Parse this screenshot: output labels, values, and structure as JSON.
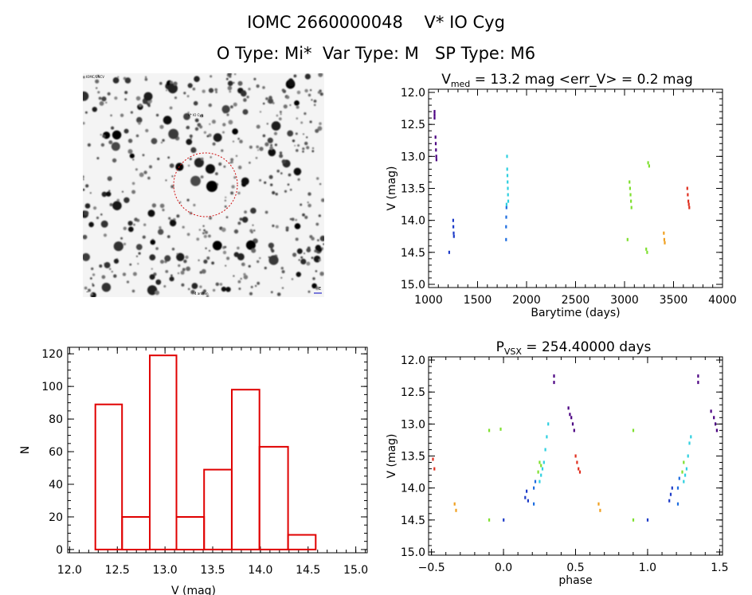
{
  "header": {
    "line1": "IOMC 2660000048    V* IO Cyg",
    "line2": "O Type: Mi*  Var Type: M   SP Type: M6"
  },
  "image_panel": {
    "label_top_left": "IOMC/SNCV",
    "label_target": "V* IO Cyg",
    "label_bottom_left": "~",
    "label_bottom_center": "4 arcmin",
    "label_bottom_right": "E"
  },
  "chart_data": [
    {
      "type": "scatter",
      "title": "V_med = 13.2 mag <err_V> = 0.2 mag",
      "xlabel": "Barytime (days)",
      "ylabel": "V (mag)",
      "xlim": [
        1000,
        4000
      ],
      "ylim": [
        15.05,
        11.95
      ],
      "y_inverted": true,
      "xticks": [
        "1000",
        "1500",
        "2000",
        "2500",
        "3000",
        "3500",
        "4000"
      ],
      "yticks": [
        "12.0",
        "12.5",
        "13.0",
        "13.5",
        "14.0",
        "14.5",
        "15.0"
      ],
      "series": [
        {
          "color": "#4b0082",
          "points": [
            [
              1060,
              12.3
            ],
            [
              1060,
              12.35
            ],
            [
              1060,
              12.4
            ],
            [
              1070,
              12.7
            ],
            [
              1072,
              12.8
            ],
            [
              1075,
              12.9
            ],
            [
              1078,
              13.0
            ],
            [
              1080,
              13.05
            ]
          ]
        },
        {
          "color": "#1e3cc8",
          "points": [
            [
              1210,
              14.5
            ],
            [
              1250,
              14.0
            ],
            [
              1252,
              14.1
            ],
            [
              1255,
              14.2
            ],
            [
              1258,
              14.25
            ]
          ]
        },
        {
          "color": "#1e6ee0",
          "points": [
            [
              1790,
              14.3
            ],
            [
              1790,
              14.1
            ],
            [
              1792,
              13.95
            ],
            [
              1794,
              13.8
            ]
          ]
        },
        {
          "color": "#2fd0e0",
          "points": [
            [
              1800,
              13.0
            ],
            [
              1802,
              13.2
            ],
            [
              1804,
              13.3
            ],
            [
              1806,
              13.4
            ],
            [
              1808,
              13.5
            ],
            [
              1810,
              13.6
            ],
            [
              1812,
              13.7
            ],
            [
              1795,
              13.75
            ]
          ]
        },
        {
          "color": "#7fe030",
          "points": [
            [
              3050,
              13.4
            ],
            [
              3055,
              13.5
            ],
            [
              3060,
              13.6
            ],
            [
              3065,
              13.7
            ],
            [
              3070,
              13.8
            ],
            [
              3220,
              14.45
            ],
            [
              3230,
              14.5
            ],
            [
              3240,
              13.1
            ],
            [
              3250,
              13.15
            ],
            [
              3030,
              14.3
            ]
          ]
        },
        {
          "color": "#f0a020",
          "points": [
            [
              3400,
              14.2
            ],
            [
              3405,
              14.3
            ],
            [
              3410,
              14.35
            ]
          ]
        },
        {
          "color": "#e03020",
          "points": [
            [
              3640,
              13.5
            ],
            [
              3645,
              13.6
            ],
            [
              3650,
              13.7
            ],
            [
              3655,
              13.75
            ],
            [
              3660,
              13.8
            ]
          ]
        }
      ]
    },
    {
      "type": "bar",
      "title": "",
      "xlabel": "V (mag)",
      "ylabel": "N",
      "xlim": [
        11.98,
        15.12
      ],
      "ylim": [
        -2,
        124
      ],
      "xticks": [
        "12.0",
        "12.5",
        "13.0",
        "13.5",
        "14.0",
        "14.5",
        "15.0"
      ],
      "yticks": [
        "0",
        "20",
        "40",
        "60",
        "80",
        "100",
        "120"
      ],
      "bar_color": "#e00000",
      "bins": [
        {
          "from": 12.27,
          "to": 12.55,
          "value": 89
        },
        {
          "from": 12.55,
          "to": 12.84,
          "value": 20
        },
        {
          "from": 12.84,
          "to": 13.12,
          "value": 119
        },
        {
          "from": 13.12,
          "to": 13.41,
          "value": 20
        },
        {
          "from": 13.41,
          "to": 13.7,
          "value": 49
        },
        {
          "from": 13.7,
          "to": 13.99,
          "value": 98
        },
        {
          "from": 13.99,
          "to": 14.29,
          "value": 63
        },
        {
          "from": 14.29,
          "to": 14.58,
          "value": 9
        }
      ]
    },
    {
      "type": "scatter",
      "title": "P_VSX = 254.40000 days",
      "xlabel": "phase",
      "ylabel": "V (mag)",
      "xlim": [
        -0.52,
        1.52
      ],
      "ylim": [
        15.05,
        11.95
      ],
      "y_inverted": true,
      "xticks": [
        "−0.5",
        "0.0",
        "0.5",
        "1.0",
        "1.5"
      ],
      "yticks": [
        "12.0",
        "12.5",
        "13.0",
        "13.5",
        "14.0",
        "14.5",
        "15.0"
      ],
      "series": [
        {
          "color": "#4b0082",
          "points": [
            [
              0.35,
              12.25
            ],
            [
              0.35,
              12.35
            ],
            [
              0.45,
              12.75
            ],
            [
              0.46,
              12.85
            ],
            [
              0.47,
              12.9
            ],
            [
              0.48,
              13.0
            ],
            [
              0.49,
              13.1
            ],
            [
              1.35,
              12.25
            ],
            [
              1.35,
              12.35
            ],
            [
              1.44,
              12.8
            ],
            [
              1.46,
              12.9
            ],
            [
              1.47,
              13.0
            ],
            [
              1.48,
              13.1
            ]
          ]
        },
        {
          "color": "#1e3cc8",
          "points": [
            [
              0.0,
              14.5
            ],
            [
              0.15,
              14.15
            ],
            [
              0.16,
              14.05
            ],
            [
              0.17,
              14.2
            ],
            [
              1.0,
              14.5
            ],
            [
              1.15,
              14.2
            ],
            [
              1.16,
              14.1
            ],
            [
              1.17,
              14.0
            ]
          ]
        },
        {
          "color": "#1e6ee0",
          "points": [
            [
              0.21,
              14.25
            ],
            [
              0.21,
              14.0
            ],
            [
              0.22,
              13.9
            ],
            [
              1.21,
              14.25
            ],
            [
              1.21,
              14.0
            ],
            [
              1.22,
              13.85
            ]
          ]
        },
        {
          "color": "#2fd0e0",
          "points": [
            [
              0.25,
              13.9
            ],
            [
              0.26,
              13.8
            ],
            [
              0.27,
              13.7
            ],
            [
              0.28,
              13.6
            ],
            [
              0.29,
              13.4
            ],
            [
              0.3,
              13.2
            ],
            [
              0.31,
              13.0
            ],
            [
              1.25,
              13.9
            ],
            [
              1.26,
              13.8
            ],
            [
              1.27,
              13.7
            ],
            [
              1.28,
              13.5
            ],
            [
              1.29,
              13.3
            ],
            [
              1.3,
              13.2
            ]
          ]
        },
        {
          "color": "#7fe030",
          "points": [
            [
              -0.1,
              13.1
            ],
            [
              -0.1,
              14.5
            ],
            [
              -0.02,
              13.08
            ],
            [
              0.24,
              13.75
            ],
            [
              0.25,
              13.6
            ],
            [
              0.26,
              13.65
            ],
            [
              0.9,
              13.1
            ],
            [
              0.9,
              14.5
            ],
            [
              1.24,
              13.75
            ],
            [
              1.25,
              13.6
            ]
          ]
        },
        {
          "color": "#f0a020",
          "points": [
            [
              -0.34,
              14.25
            ],
            [
              -0.33,
              14.35
            ],
            [
              0.66,
              14.25
            ],
            [
              0.67,
              14.35
            ]
          ]
        },
        {
          "color": "#e03020",
          "points": [
            [
              -0.49,
              13.55
            ],
            [
              -0.48,
              13.7
            ],
            [
              0.5,
              13.5
            ],
            [
              0.51,
              13.6
            ],
            [
              0.52,
              13.7
            ],
            [
              0.53,
              13.75
            ]
          ]
        }
      ]
    }
  ]
}
